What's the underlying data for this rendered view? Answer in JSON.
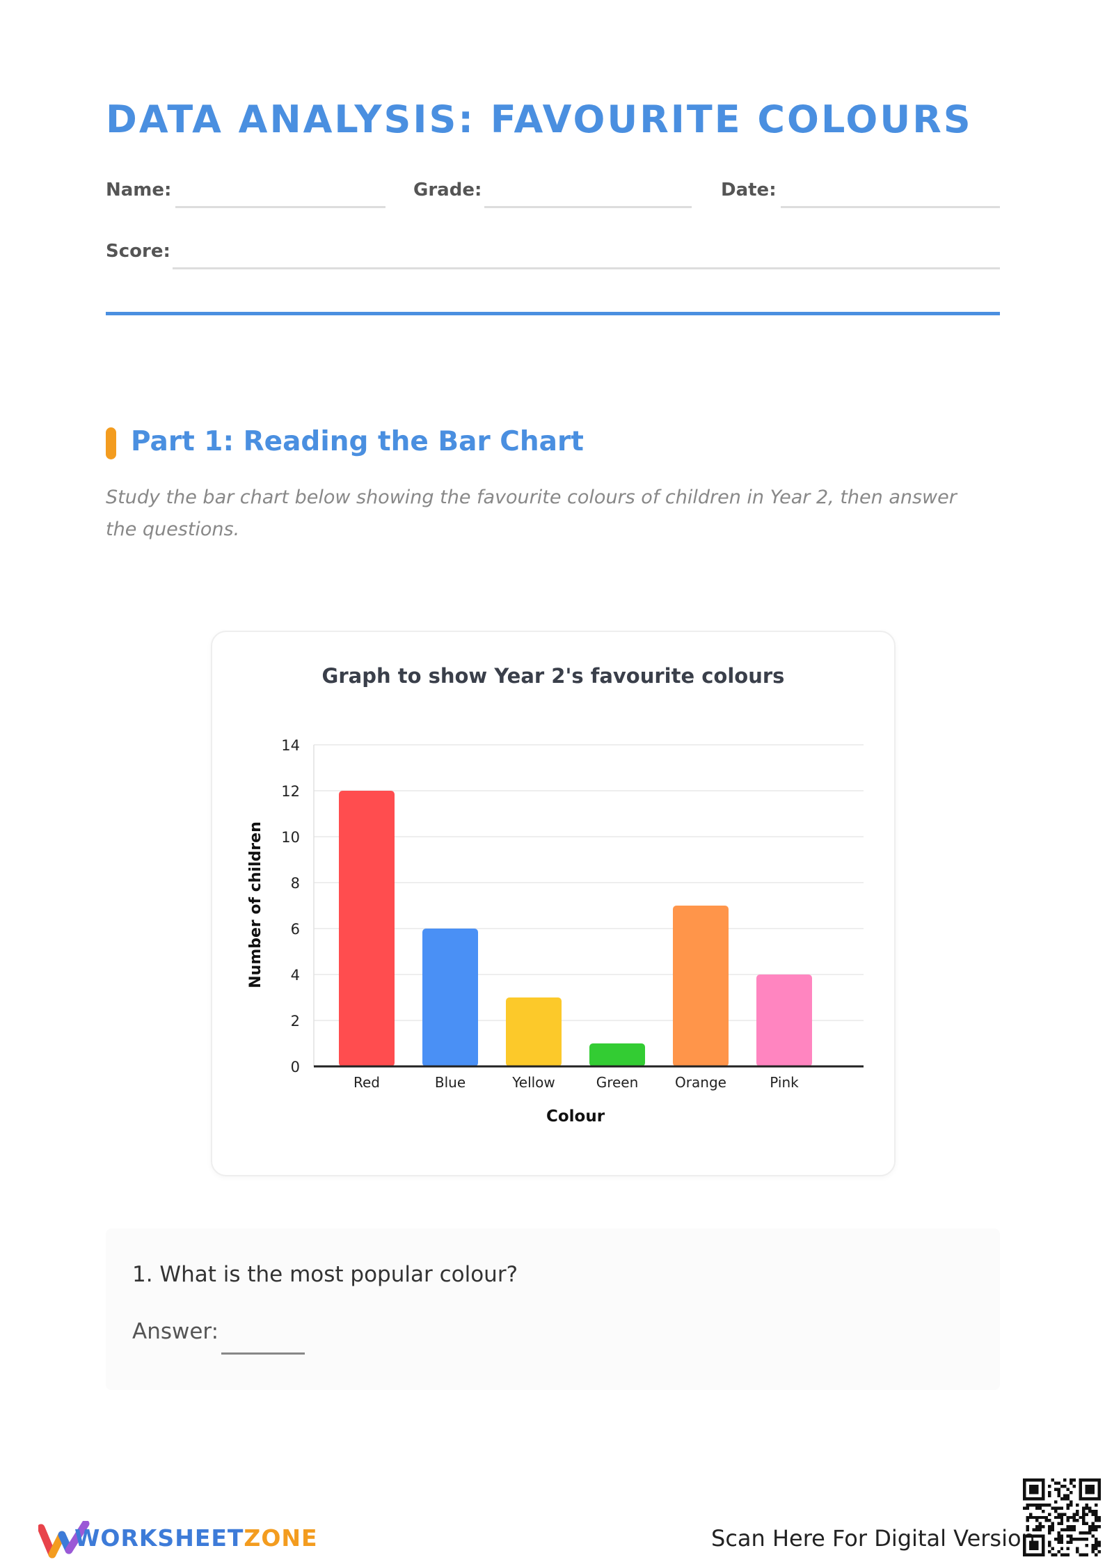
{
  "header": {
    "title": "DATA ANALYSIS: FAVOURITE COLOURS",
    "name_label": "Name:",
    "grade_label": "Grade:",
    "date_label": "Date:",
    "score_label": "Score:"
  },
  "section": {
    "title": "Part 1: Reading the Bar Chart",
    "instructions": "Study the bar chart below showing the favourite colours of children in Year 2, then answer the questions."
  },
  "chart_data": {
    "type": "bar",
    "title": "Graph to show Year 2's favourite colours",
    "xlabel": "Colour",
    "ylabel": "Number of children",
    "categories": [
      "Red",
      "Blue",
      "Yellow",
      "Green",
      "Orange",
      "Pink"
    ],
    "values": [
      12,
      6,
      3,
      1,
      7,
      4
    ],
    "colors": [
      "#ff4d4f",
      "#4a90f5",
      "#fcc92a",
      "#33cc33",
      "#ff954a",
      "#ff85c0"
    ],
    "ylim": [
      0,
      14
    ],
    "yticks": [
      0,
      2,
      4,
      6,
      8,
      10,
      12,
      14
    ],
    "grid": true
  },
  "question": {
    "text": "1. What is the most popular colour?",
    "answer_label": "Answer:"
  },
  "footer": {
    "brand_part1": "WORKSHEET",
    "brand_part2": "ZONE",
    "scan_text": "Scan Here For Digital Version",
    "logo_icon": "worksheetzone-logo-icon",
    "qr_icon": "qr-code-icon"
  }
}
